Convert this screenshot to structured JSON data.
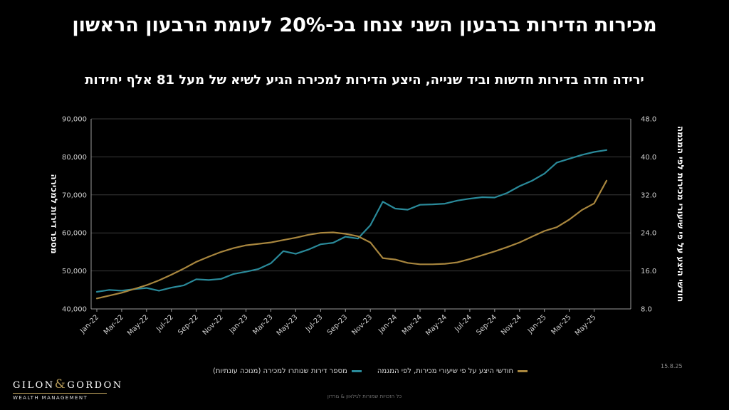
{
  "header": {
    "title": "מכירות הדירות ברבעון השני צנחו בכ-20% לעומת הרבעון הראשון",
    "subtitle": "ירידה חדה בדירות חדשות וביד שנייה, היצע הדירות למכירה הגיע לשיא של מעל 81 אלף יחידות"
  },
  "chart_data": {
    "type": "line",
    "x": [
      "Jan-22",
      "Feb-22",
      "Mar-22",
      "Apr-22",
      "May-22",
      "Jun-22",
      "Jul-22",
      "Aug-22",
      "Sep-22",
      "Oct-22",
      "Nov-22",
      "Dec-22",
      "Jan-23",
      "Feb-23",
      "Mar-23",
      "Apr-23",
      "May-23",
      "Jun-23",
      "Jul-23",
      "Aug-23",
      "Sep-23",
      "Oct-23",
      "Nov-23",
      "Dec-23",
      "Jan-24",
      "Feb-24",
      "Mar-24",
      "Apr-24",
      "May-24",
      "Jun-24",
      "Jul-24",
      "Aug-24",
      "Sep-24",
      "Oct-24",
      "Nov-24",
      "Dec-24",
      "Jan-25",
      "Feb-25",
      "Mar-25",
      "Apr-25",
      "May-25",
      "Jun-25"
    ],
    "x_tick_labels": [
      "Jan-22",
      "Mar-22",
      "May-22",
      "Jul-22",
      "Sep-22",
      "Nov-22",
      "Jan-23",
      "Mar-23",
      "May-23",
      "Jul-23",
      "Sep-23",
      "Nov-23",
      "Jan-24",
      "Mar-24",
      "May-24",
      "Jul-24",
      "Sep-24",
      "Nov-24",
      "Jan-25",
      "Mar-25",
      "May-25"
    ],
    "y_left": {
      "label": "מספר דירות למכירה",
      "range": [
        40000,
        90000
      ],
      "ticks": [
        "40,000",
        "50,000",
        "60,000",
        "70,000",
        "80,000",
        "90,000"
      ]
    },
    "y_right": {
      "label": "חודשי היצע על פי שיעורי מכירות לפי המגמה",
      "range": [
        8,
        48
      ],
      "ticks": [
        "8.0",
        "16.0",
        "24.0",
        "32.0",
        "40.0",
        "48.0"
      ]
    },
    "series": [
      {
        "name": "מספר דירות שנותרו למכירה (מנוכה עונתיות)",
        "axis": "left",
        "color": "#2a8a9a",
        "values": [
          44500,
          45000,
          44800,
          45200,
          45500,
          44800,
          45600,
          46200,
          47800,
          47600,
          47900,
          49200,
          49800,
          50500,
          52000,
          55200,
          54500,
          55600,
          57000,
          57400,
          59000,
          58500,
          62000,
          68200,
          66400,
          66100,
          67400,
          67500,
          67700,
          68500,
          69000,
          69400,
          69300,
          70500,
          72300,
          73700,
          75600,
          78500,
          79500,
          80500,
          81300,
          81800
        ]
      },
      {
        "name": "חודשי היצע על פי שיעורי מכירות, לפי המגמה",
        "axis": "right",
        "color": "#a8863e",
        "values": [
          10.2,
          10.8,
          11.4,
          12.2,
          13.0,
          14.0,
          15.2,
          16.5,
          17.9,
          19.0,
          20.0,
          20.8,
          21.4,
          21.7,
          22.0,
          22.5,
          23.0,
          23.6,
          24.0,
          24.1,
          23.8,
          23.3,
          22.0,
          18.7,
          18.4,
          17.7,
          17.4,
          17.4,
          17.5,
          17.8,
          18.5,
          19.3,
          20.1,
          21.0,
          22.0,
          23.2,
          24.4,
          25.2,
          26.8,
          28.8,
          30.2,
          35.0
        ]
      }
    ],
    "grid": "horizontal"
  },
  "legend_position": "bottom",
  "date_stamp": "15.8.25",
  "footer_text": "כל הזכויות שמורות לגילאון & גורדון",
  "logo": {
    "line1_left": "GILON",
    "ampersand": "&",
    "line1_right": "GORDON",
    "line2": "WEALTH MANAGEMENT"
  }
}
